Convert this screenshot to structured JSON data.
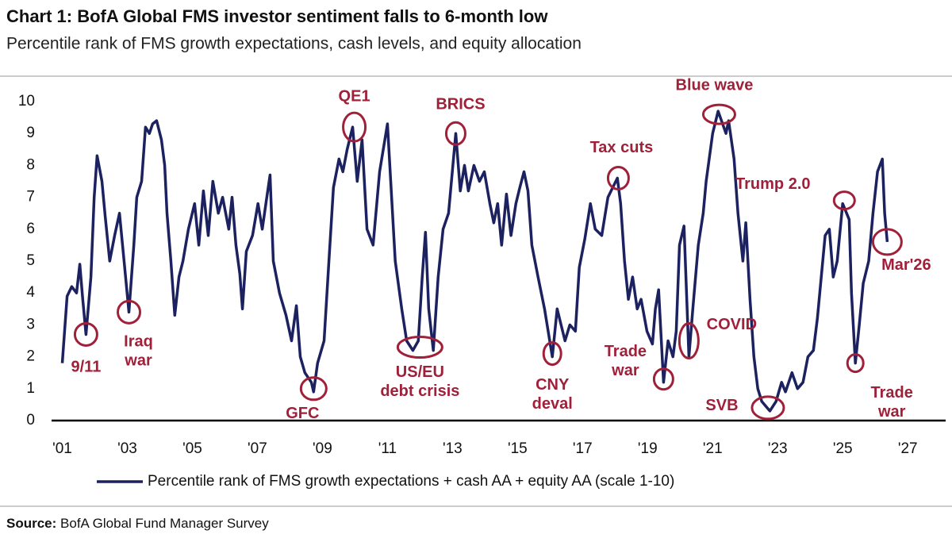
{
  "chart_data": {
    "type": "line",
    "title": "Chart 1: BofA Global FMS investor sentiment falls to 6-month low",
    "subtitle": "Percentile rank of FMS growth expectations, cash levels, and equity allocation",
    "source_label": "Source:",
    "source": "BofA Global Fund Manager Survey",
    "xlim": [
      2000.5,
      2027.8
    ],
    "ylim": [
      0,
      10
    ],
    "xticks": [
      {
        "value": 2001,
        "label": "'01"
      },
      {
        "value": 2003,
        "label": "'03"
      },
      {
        "value": 2005,
        "label": "'05"
      },
      {
        "value": 2007,
        "label": "'07"
      },
      {
        "value": 2009,
        "label": "'09"
      },
      {
        "value": 2011,
        "label": "'11"
      },
      {
        "value": 2013,
        "label": "'13"
      },
      {
        "value": 2015,
        "label": "'15"
      },
      {
        "value": 2017,
        "label": "'17"
      },
      {
        "value": 2019,
        "label": "'19"
      },
      {
        "value": 2021,
        "label": "'21"
      },
      {
        "value": 2023,
        "label": "'23"
      },
      {
        "value": 2025,
        "label": "'25"
      },
      {
        "value": 2027,
        "label": "'27"
      }
    ],
    "yticks": [
      0,
      1,
      2,
      3,
      4,
      5,
      6,
      7,
      8,
      9,
      10
    ],
    "legend": "bottom",
    "x": [
      2001.0,
      2001.15,
      2001.29,
      2001.44,
      2001.54,
      2001.63,
      2001.73,
      2001.88,
      2001.98,
      2002.07,
      2002.22,
      2002.32,
      2002.46,
      2002.61,
      2002.76,
      2002.9,
      2003.05,
      2003.2,
      2003.29,
      2003.44,
      2003.56,
      2003.68,
      2003.78,
      2003.9,
      2004.05,
      2004.15,
      2004.22,
      2004.34,
      2004.46,
      2004.59,
      2004.71,
      2004.88,
      2005.07,
      2005.2,
      2005.34,
      2005.49,
      2005.63,
      2005.8,
      2005.93,
      2006.12,
      2006.22,
      2006.34,
      2006.46,
      2006.54,
      2006.66,
      2006.85,
      2007.02,
      2007.15,
      2007.29,
      2007.39,
      2007.49,
      2007.68,
      2007.88,
      2008.05,
      2008.2,
      2008.32,
      2008.46,
      2008.66,
      2008.73,
      2008.85,
      2009.05,
      2009.2,
      2009.34,
      2009.51,
      2009.63,
      2009.76,
      2009.93,
      2010.07,
      2010.22,
      2010.37,
      2010.56,
      2010.76,
      2011.0,
      2011.1,
      2011.24,
      2011.44,
      2011.59,
      2011.78,
      2011.95,
      2012.07,
      2012.17,
      2012.27,
      2012.41,
      2012.56,
      2012.71,
      2012.88,
      2013.1,
      2013.24,
      2013.37,
      2013.49,
      2013.66,
      2013.83,
      2013.98,
      2014.15,
      2014.27,
      2014.39,
      2014.51,
      2014.66,
      2014.8,
      2014.95,
      2015.07,
      2015.2,
      2015.32,
      2015.44,
      2015.63,
      2015.83,
      2016.07,
      2016.22,
      2016.46,
      2016.61,
      2016.78,
      2016.9,
      2017.07,
      2017.24,
      2017.39,
      2017.59,
      2017.78,
      2018.07,
      2018.17,
      2018.29,
      2018.41,
      2018.54,
      2018.68,
      2018.8,
      2018.98,
      2019.15,
      2019.24,
      2019.34,
      2019.49,
      2019.63,
      2019.78,
      2019.88,
      2019.98,
      2020.12,
      2020.27,
      2020.39,
      2020.56,
      2020.71,
      2020.8,
      2021.0,
      2021.17,
      2021.41,
      2021.49,
      2021.66,
      2021.78,
      2021.93,
      2022.02,
      2022.15,
      2022.27,
      2022.39,
      2022.51,
      2022.76,
      2022.95,
      2023.12,
      2023.24,
      2023.44,
      2023.61,
      2023.78,
      2023.93,
      2024.1,
      2024.22,
      2024.34,
      2024.46,
      2024.59,
      2024.71,
      2024.83,
      2025.0,
      2025.2,
      2025.27,
      2025.39,
      2025.51,
      2025.63,
      2025.8,
      2025.93,
      2026.07,
      2026.22,
      2026.29,
      2026.37
    ],
    "series": [
      {
        "name": "Percentile rank of FMS growth expectations + cash AA + equity AA (scale 1-10)",
        "color": "#1c2160",
        "values": [
          1.8,
          3.9,
          4.2,
          4.0,
          4.9,
          3.8,
          2.7,
          4.5,
          7.0,
          8.3,
          7.5,
          6.4,
          5.0,
          5.8,
          6.5,
          5.0,
          3.4,
          5.5,
          7.0,
          7.5,
          9.2,
          9.0,
          9.3,
          9.4,
          8.8,
          8.0,
          6.5,
          5.0,
          3.3,
          4.5,
          5.0,
          6.0,
          6.8,
          5.5,
          7.2,
          5.8,
          7.5,
          6.5,
          7.0,
          6.0,
          7.0,
          5.5,
          4.6,
          3.5,
          5.3,
          5.8,
          6.8,
          6.0,
          7.0,
          7.7,
          5.0,
          4.0,
          3.3,
          2.5,
          3.6,
          2.0,
          1.5,
          1.2,
          0.9,
          1.8,
          2.5,
          5.0,
          7.3,
          8.2,
          7.8,
          8.5,
          9.2,
          7.5,
          8.8,
          6.0,
          5.5,
          7.8,
          9.3,
          7.5,
          5.0,
          3.5,
          2.5,
          2.2,
          2.5,
          4.5,
          5.9,
          3.5,
          2.2,
          4.5,
          6.0,
          6.5,
          9.0,
          7.2,
          8.0,
          7.2,
          8.0,
          7.5,
          7.8,
          6.8,
          6.2,
          6.8,
          5.5,
          7.1,
          5.8,
          6.8,
          7.3,
          7.8,
          7.2,
          5.5,
          4.5,
          3.5,
          2.0,
          3.5,
          2.5,
          3.0,
          2.8,
          4.8,
          5.7,
          6.8,
          6.0,
          5.8,
          7.0,
          7.6,
          6.8,
          5.0,
          3.8,
          4.5,
          3.5,
          3.8,
          2.8,
          2.4,
          3.5,
          4.1,
          1.2,
          2.5,
          2.0,
          2.8,
          5.5,
          6.1,
          2.0,
          3.5,
          5.5,
          6.5,
          7.5,
          9.0,
          9.7,
          9.0,
          9.4,
          8.2,
          6.5,
          5.0,
          6.2,
          3.8,
          2.0,
          1.0,
          0.6,
          0.3,
          0.6,
          1.2,
          0.9,
          1.5,
          1.0,
          1.2,
          2.0,
          2.2,
          3.2,
          4.5,
          5.8,
          6.0,
          4.5,
          5.0,
          6.8,
          6.3,
          4.0,
          1.8,
          3.0,
          4.3,
          5.0,
          6.5,
          7.8,
          8.2,
          6.5,
          5.6
        ]
      }
    ],
    "annotations": [
      {
        "text": [
          "9/11"
        ],
        "x": 2001.73,
        "y": 2.7
      },
      {
        "text": [
          "Iraq",
          "war"
        ],
        "x": 2003.05,
        "y": 3.4
      },
      {
        "text": [
          "GFC"
        ],
        "x": 2008.73,
        "y": 1.0
      },
      {
        "text": [
          "QE1"
        ],
        "x": 2009.98,
        "y": 9.2
      },
      {
        "text": [
          "US/EU",
          "debt crisis"
        ],
        "x": 2012.0,
        "y": 2.3
      },
      {
        "text": [
          "BRICS"
        ],
        "x": 2013.1,
        "y": 9.0
      },
      {
        "text": [
          "CNY",
          "deval"
        ],
        "x": 2016.07,
        "y": 2.1
      },
      {
        "text": [
          "Tax cuts"
        ],
        "x": 2018.1,
        "y": 7.6
      },
      {
        "text": [
          "Trade",
          "war"
        ],
        "x": 2019.49,
        "y": 1.3
      },
      {
        "text": [
          "COVID"
        ],
        "x": 2020.27,
        "y": 2.5
      },
      {
        "text": [
          "Blue wave"
        ],
        "x": 2021.2,
        "y": 9.6
      },
      {
        "text": [
          "SVB"
        ],
        "x": 2022.7,
        "y": 0.4
      },
      {
        "text": [
          "Trump 2.0"
        ],
        "x": 2025.05,
        "y": 6.9
      },
      {
        "text": [
          "Trade",
          "war"
        ],
        "x": 2025.39,
        "y": 1.8
      },
      {
        "text": [
          "Mar'26"
        ],
        "x": 2026.37,
        "y": 5.6
      }
    ]
  }
}
